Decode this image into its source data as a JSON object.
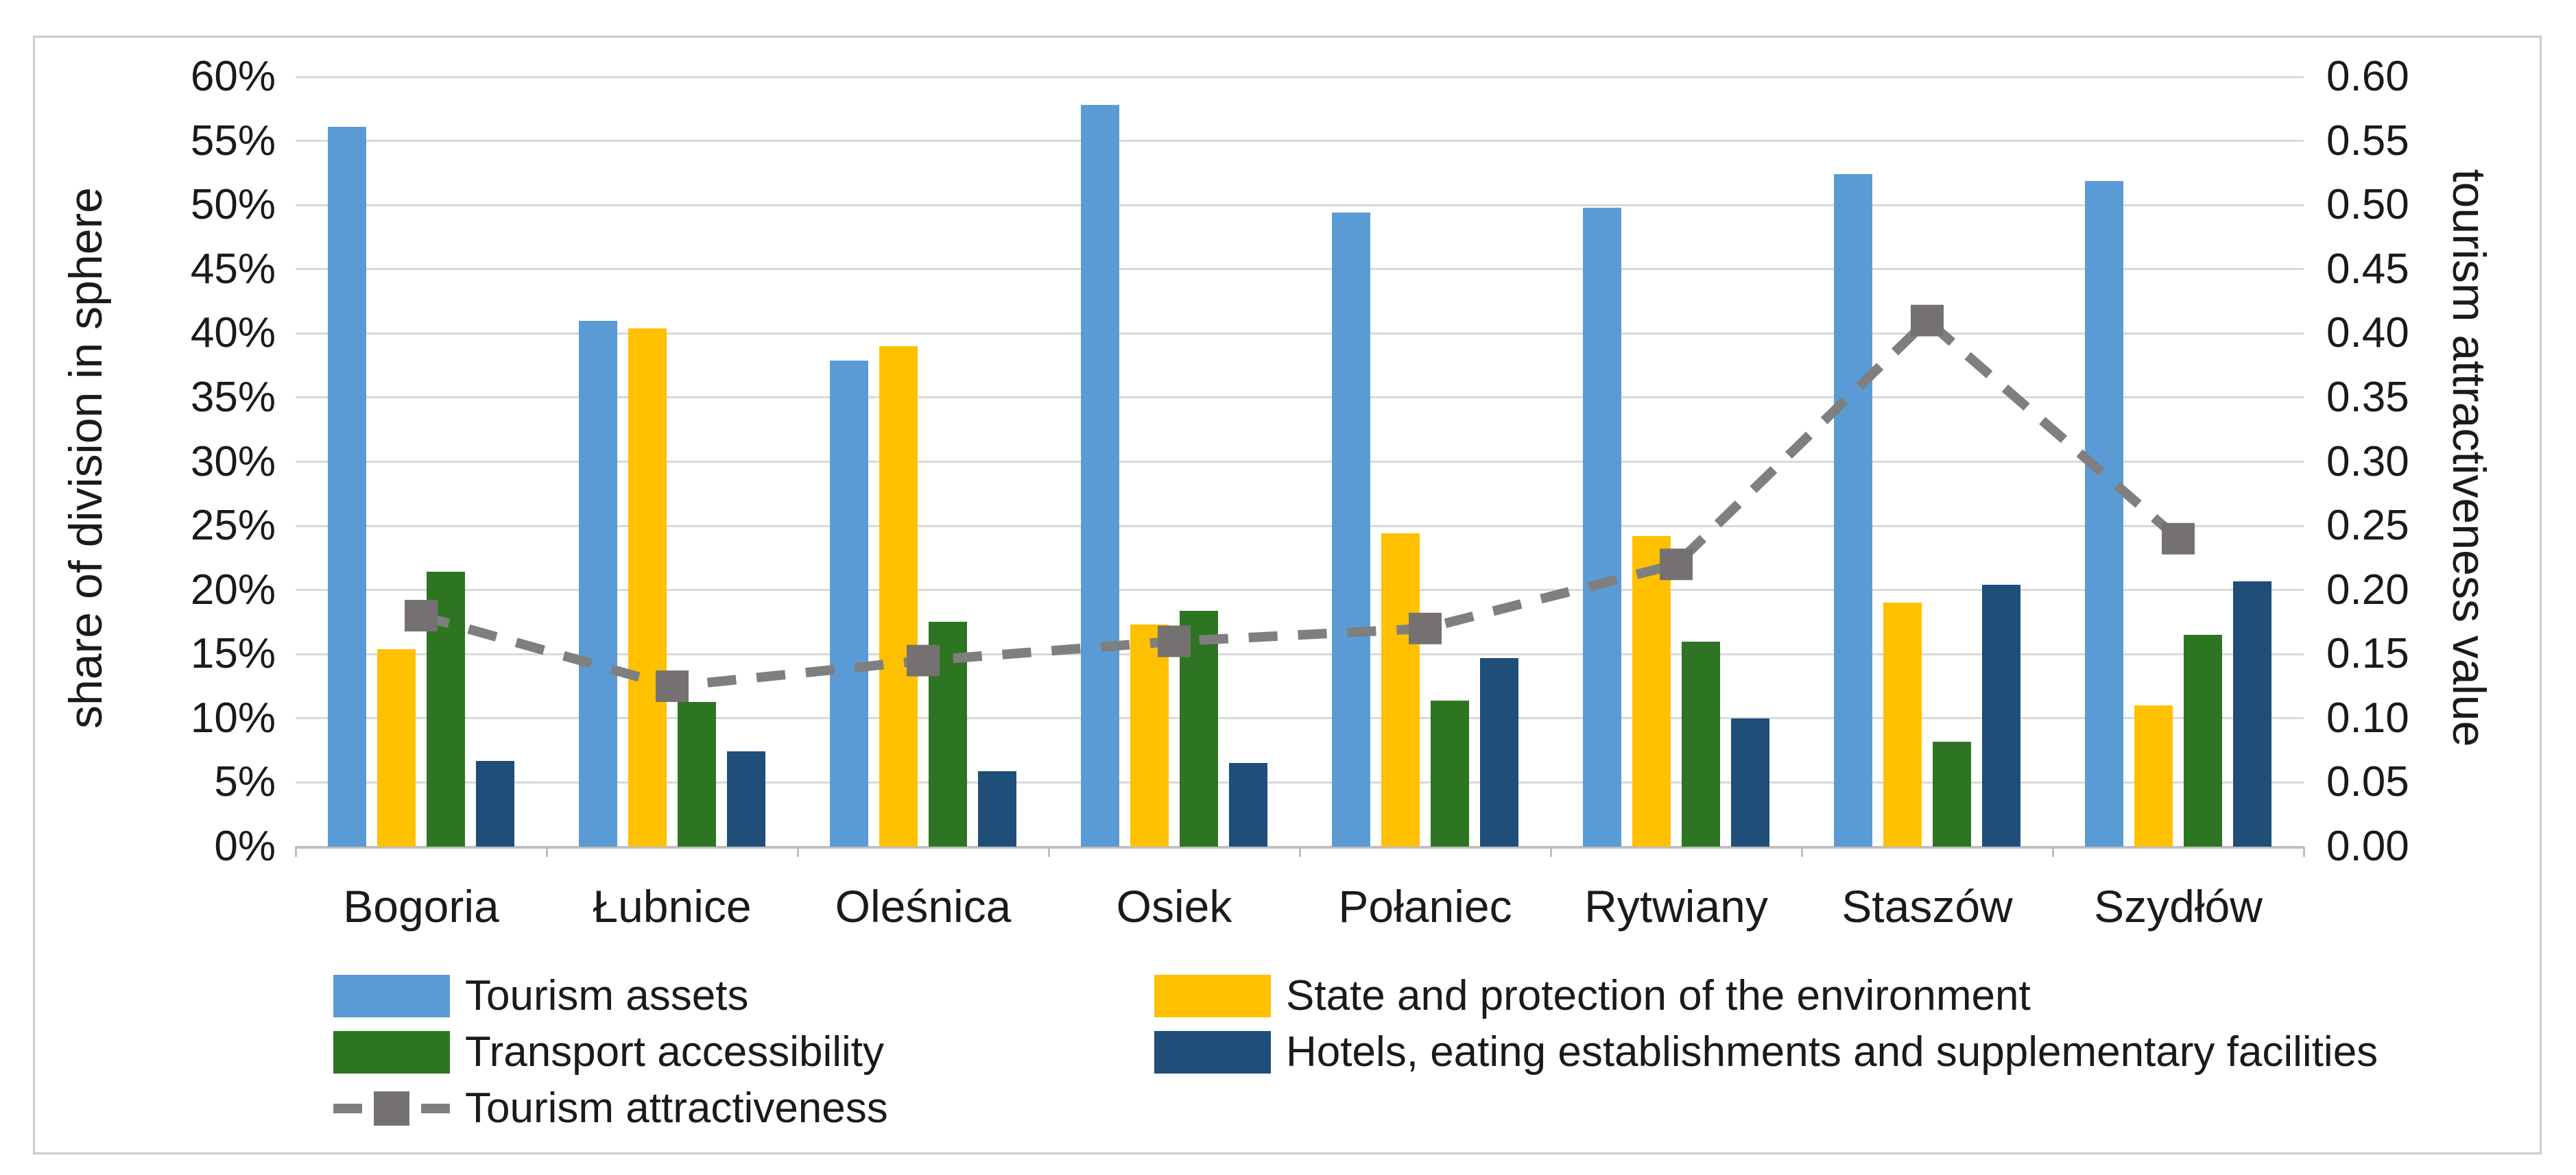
{
  "figure": {
    "background": "#ffffff",
    "border_color": "#cbcbcb"
  },
  "chart_data": {
    "type": "bar",
    "subtype": "grouped-bar-with-line-overlay",
    "categories": [
      "Bogoria",
      "Łubnice",
      "Oleśnica",
      "Osiek",
      "Połaniec",
      "Rytwiany",
      "Staszów",
      "Szydłów"
    ],
    "series": [
      {
        "name": "Tourism assets",
        "type": "bar",
        "axis": "left",
        "color": "#5b9bd5",
        "values": [
          56.1,
          41.0,
          37.9,
          57.8,
          49.4,
          49.8,
          52.4,
          51.9
        ]
      },
      {
        "name": "State and protection of the environment",
        "type": "bar",
        "axis": "left",
        "color": "#ffc000",
        "values": [
          15.4,
          40.4,
          39.0,
          17.3,
          24.4,
          24.2,
          19.0,
          11.0
        ]
      },
      {
        "name": "Transport accessibility",
        "type": "bar",
        "axis": "left",
        "color": "#2e7523",
        "values": [
          21.4,
          11.3,
          17.5,
          18.4,
          11.4,
          16.0,
          8.2,
          16.5
        ]
      },
      {
        "name": "Hotels, eating establishments and supplementary facilities",
        "type": "bar",
        "axis": "left",
        "color": "#1f4e79",
        "values": [
          6.7,
          7.4,
          5.9,
          6.5,
          14.7,
          10.0,
          20.4,
          20.7
        ]
      },
      {
        "name": "Tourism attractiveness",
        "type": "line",
        "axis": "right",
        "color": "#7f7f7f",
        "marker_color": "#767171",
        "line_style": "dashed",
        "marker": "square",
        "values": [
          0.18,
          0.125,
          0.145,
          0.16,
          0.17,
          0.22,
          0.41,
          0.24
        ]
      }
    ],
    "left_axis": {
      "label": "share of division in sphere",
      "min": 0,
      "max": 60,
      "step": 5,
      "ticks": [
        "60%",
        "55%",
        "50%",
        "45%",
        "40%",
        "35%",
        "30%",
        "25%",
        "20%",
        "15%",
        "10%",
        "5%",
        "0%"
      ]
    },
    "right_axis": {
      "label": "tourism attractiveness value",
      "min": 0,
      "max": 0.6,
      "step": 0.05,
      "ticks": [
        "0.60",
        "0.55",
        "0.50",
        "0.45",
        "0.40",
        "0.35",
        "0.30",
        "0.25",
        "0.20",
        "0.15",
        "0.10",
        "0.05",
        "0.00"
      ]
    },
    "grid": true,
    "gridline_color": "#d9d9d9",
    "legend_position": "bottom"
  }
}
